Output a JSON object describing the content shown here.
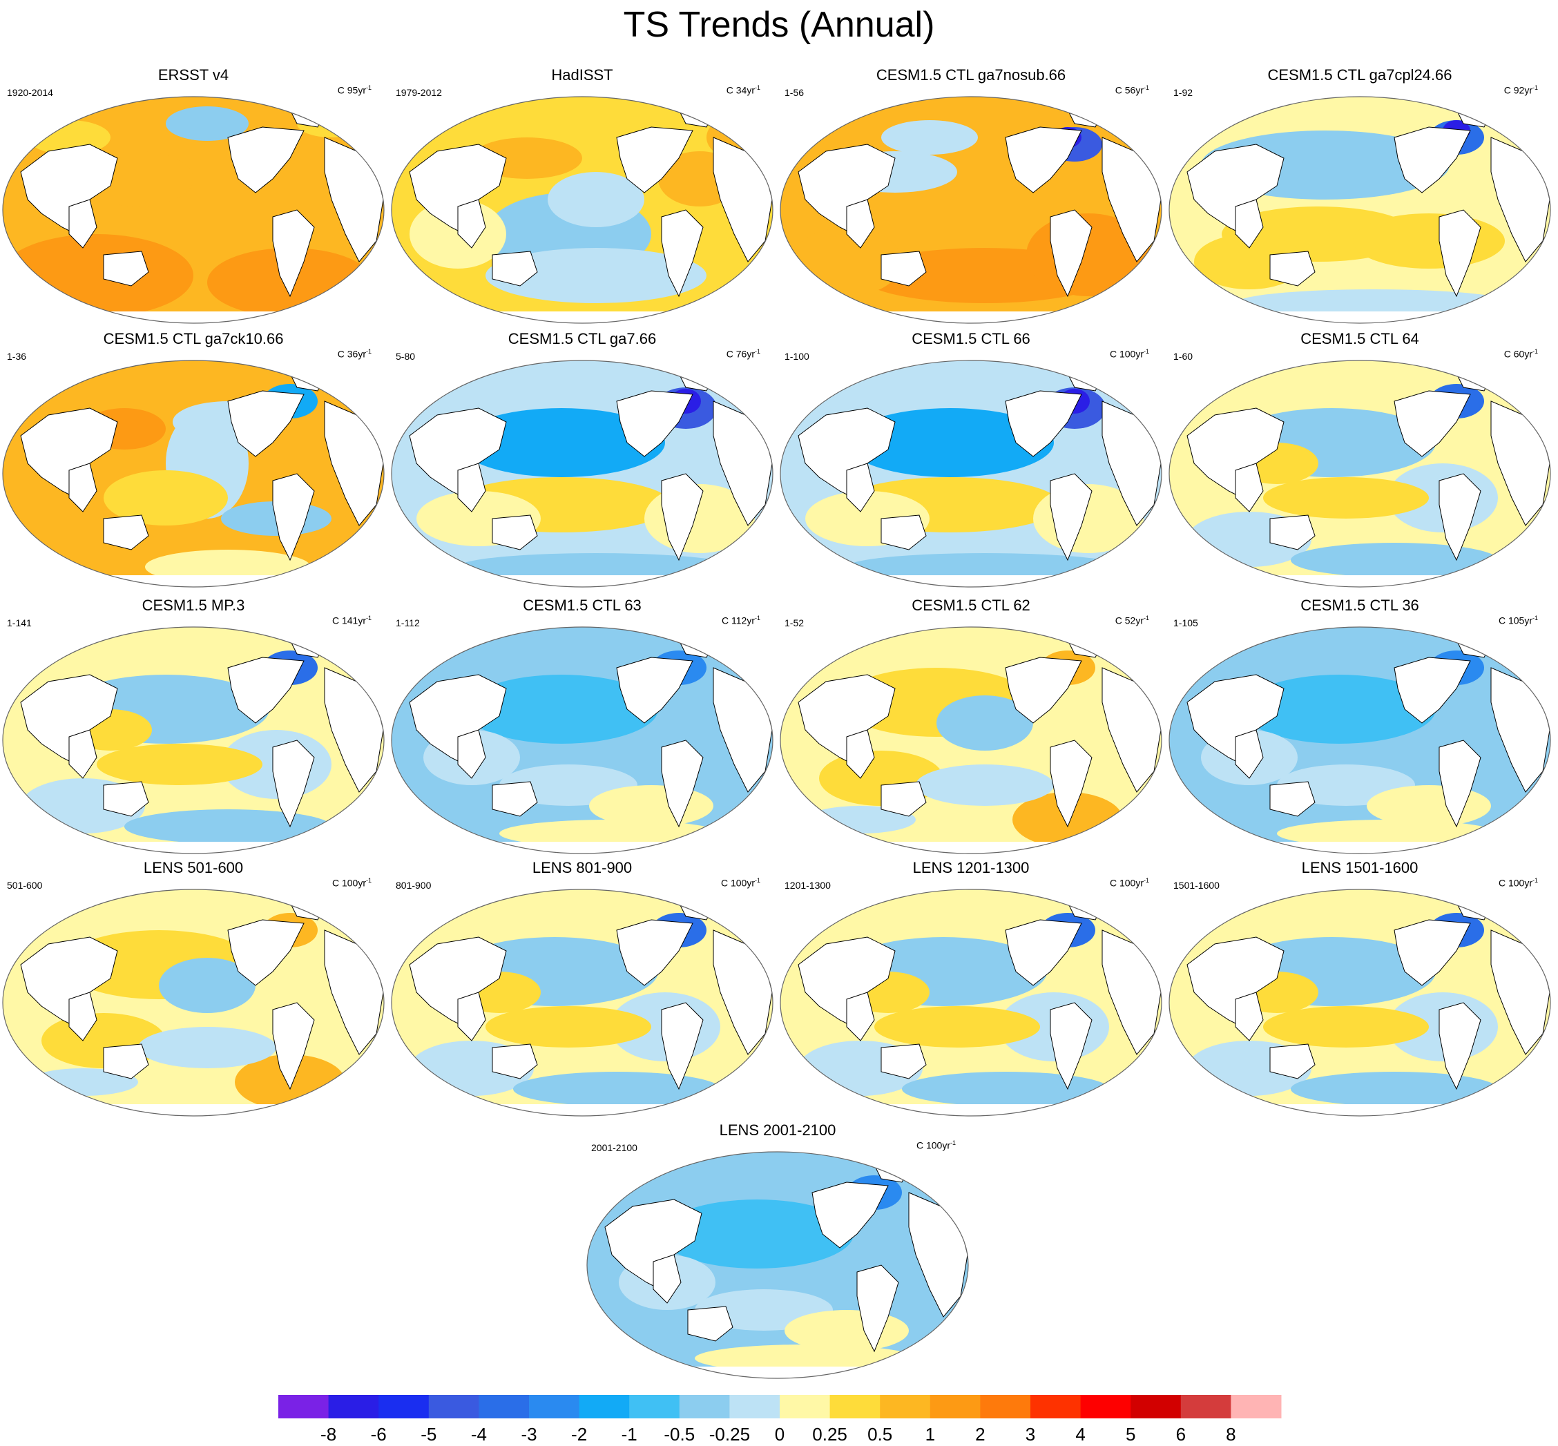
{
  "title": "TS Trends (Annual)",
  "unit_prefix": "C",
  "unit_suffix": "yr",
  "unit_exp": "-1",
  "colorbar": {
    "labels": [
      "-8",
      "-6",
      "-5",
      "-4",
      "-3",
      "-2",
      "-1",
      "-0.5",
      "-0.25",
      "0",
      "0.25",
      "0.5",
      "1",
      "2",
      "3",
      "4",
      "5",
      "6",
      "8"
    ],
    "colors": [
      "#7a22e6",
      "#2a1ee6",
      "#1a2ef0",
      "#3a5ae0",
      "#2a6ee8",
      "#2a8af0",
      "#12aaf6",
      "#40c0f4",
      "#8ccdef",
      "#bde2f5",
      "#fff8a6",
      "#fedc3a",
      "#fdb722",
      "#fd9a14",
      "#fe7a0c",
      "#fe3200",
      "#fe0000",
      "#d20000",
      "#d43c3c",
      "#ffb4b4"
    ]
  },
  "palette": {
    "land": "#ffffff",
    "coast": "#000000",
    "border": "#666666"
  },
  "panels": [
    {
      "title": "ERSST v4",
      "range": "1920-2014",
      "n": "95",
      "pattern": "warm"
    },
    {
      "title": "HadISST",
      "range": "1979-2012",
      "n": "34",
      "pattern": "hadisst"
    },
    {
      "title": "CESM1.5 CTL ga7nosub.66",
      "range": "1-56",
      "n": "56",
      "pattern": "warm-natl"
    },
    {
      "title": "CESM1.5 CTL ga7cpl24.66",
      "range": "1-92",
      "n": "92",
      "pattern": "mixed-cool-north"
    },
    {
      "title": "CESM1.5 CTL ga7ck10.66",
      "range": "1-36",
      "n": "36",
      "pattern": "warm-pac"
    },
    {
      "title": "CESM1.5 CTL ga7.66",
      "range": "5-80",
      "n": "76",
      "pattern": "cool-north"
    },
    {
      "title": "CESM1.5 CTL 66",
      "range": "1-100",
      "n": "100",
      "pattern": "cool-north"
    },
    {
      "title": "CESM1.5 CTL 64",
      "range": "1-60",
      "n": "60",
      "pattern": "mixed"
    },
    {
      "title": "CESM1.5 MP.3",
      "range": "1-141",
      "n": "141",
      "pattern": "mixed"
    },
    {
      "title": "CESM1.5 CTL 63",
      "range": "1-112",
      "n": "112",
      "pattern": "cool"
    },
    {
      "title": "CESM1.5 CTL 62",
      "range": "1-52",
      "n": "52",
      "pattern": "mixed-warm"
    },
    {
      "title": "CESM1.5 CTL 36",
      "range": "1-105",
      "n": "105",
      "pattern": "cool"
    },
    {
      "title": "LENS 501-600",
      "range": "501-600",
      "n": "100",
      "pattern": "mixed-warm"
    },
    {
      "title": "LENS 801-900",
      "range": "801-900",
      "n": "100",
      "pattern": "mixed"
    },
    {
      "title": "LENS 1201-1300",
      "range": "1201-1300",
      "n": "100",
      "pattern": "mixed"
    },
    {
      "title": "LENS 1501-1600",
      "range": "1501-1600",
      "n": "100",
      "pattern": "mixed"
    },
    {
      "title": "LENS 2001-2100",
      "range": "2001-2100",
      "n": "100",
      "pattern": "cool"
    }
  ]
}
